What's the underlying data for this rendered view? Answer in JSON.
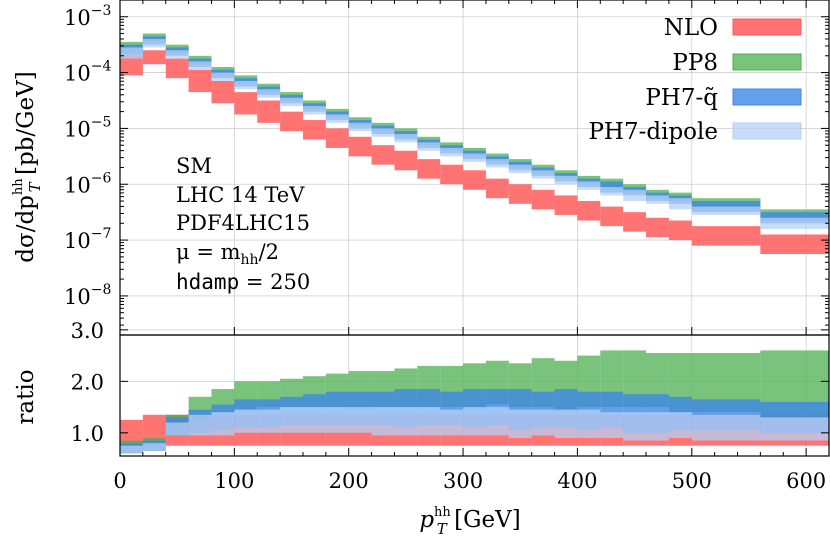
{
  "chart_data": {
    "type": "histogram-ratio",
    "xlabel": {
      "base": "p",
      "sub": "T",
      "sup": "hh",
      "unit": " [GeV]"
    },
    "ylabel_main": {
      "pre": "dσ/dp",
      "sub": "T",
      "sup": "hh",
      "unit": " [pb/GeV]"
    },
    "ylabel_ratio": "ratio",
    "xlim": [
      0,
      620
    ],
    "x_ticks": [
      0,
      100,
      200,
      300,
      400,
      500,
      600
    ],
    "main_ylim_log10": [
      -8.7,
      -2.7
    ],
    "main_y_ticks": [
      {
        "exp": -3,
        "label": "10",
        "sup": "−3"
      },
      {
        "exp": -4,
        "label": "10",
        "sup": "−4"
      },
      {
        "exp": -5,
        "label": "10",
        "sup": "−5"
      },
      {
        "exp": -6,
        "label": "10",
        "sup": "−6"
      },
      {
        "exp": -7,
        "label": "10",
        "sup": "−7"
      },
      {
        "exp": -8,
        "label": "10",
        "sup": "−8"
      }
    ],
    "ratio_ylim": [
      0.55,
      2.9
    ],
    "ratio_y_ticks": [
      {
        "value": 1.0,
        "label": "1.0"
      },
      {
        "value": 2.0,
        "label": "2.0"
      },
      {
        "value": 3.0,
        "label": "3.0"
      }
    ],
    "bin_edges": [
      0,
      20,
      40,
      60,
      80,
      100,
      120,
      140,
      160,
      180,
      200,
      220,
      240,
      260,
      280,
      300,
      320,
      340,
      360,
      380,
      400,
      420,
      440,
      460,
      480,
      500,
      560,
      620
    ],
    "series": [
      {
        "name": "NLO",
        "color": "#ff5a5a",
        "alpha": 0.85,
        "main_log10_lo": [
          -4.05,
          -3.85,
          -4.1,
          -4.35,
          -4.55,
          -4.75,
          -4.9,
          -5.05,
          -5.2,
          -5.35,
          -5.5,
          -5.65,
          -5.75,
          -5.9,
          -6.0,
          -6.1,
          -6.25,
          -6.35,
          -6.45,
          -6.55,
          -6.65,
          -6.75,
          -6.85,
          -6.95,
          -7.0,
          -7.1,
          -7.25
        ],
        "main_log10_hi": [
          -3.7,
          -3.6,
          -3.75,
          -3.95,
          -4.15,
          -4.35,
          -4.5,
          -4.7,
          -4.85,
          -5.0,
          -5.15,
          -5.3,
          -5.4,
          -5.55,
          -5.65,
          -5.75,
          -5.9,
          -6.0,
          -6.1,
          -6.2,
          -6.3,
          -6.4,
          -6.5,
          -6.6,
          -6.65,
          -6.75,
          -6.9
        ],
        "ratio_lo": [
          0.75,
          0.75,
          0.75,
          0.75,
          0.75,
          0.75,
          0.75,
          0.75,
          0.75,
          0.75,
          0.75,
          0.75,
          0.75,
          0.75,
          0.75,
          0.75,
          0.75,
          0.75,
          0.75,
          0.75,
          0.75,
          0.75,
          0.75,
          0.75,
          0.75,
          0.75,
          0.75
        ],
        "ratio_hi": [
          1.25,
          1.35,
          1.35,
          1.35,
          1.35,
          1.35,
          1.35,
          1.35,
          1.35,
          1.35,
          1.35,
          1.35,
          1.35,
          1.35,
          1.35,
          1.35,
          1.35,
          1.35,
          1.35,
          1.35,
          1.35,
          1.35,
          1.35,
          1.35,
          1.35,
          1.35,
          1.35
        ]
      },
      {
        "name": "PP8",
        "color": "#4caf50",
        "alpha": 0.75,
        "main_log10_lo": [
          -3.65,
          -3.45,
          -3.65,
          -3.85,
          -4.05,
          -4.2,
          -4.35,
          -4.5,
          -4.65,
          -4.8,
          -4.95,
          -5.05,
          -5.15,
          -5.3,
          -5.4,
          -5.5,
          -5.6,
          -5.7,
          -5.8,
          -5.9,
          -6.0,
          -6.1,
          -6.15,
          -6.25,
          -6.3,
          -6.45,
          -6.65
        ],
        "main_log10_hi": [
          -3.45,
          -3.3,
          -3.5,
          -3.7,
          -3.9,
          -4.05,
          -4.2,
          -4.35,
          -4.5,
          -4.65,
          -4.8,
          -4.9,
          -5.0,
          -5.15,
          -5.25,
          -5.35,
          -5.45,
          -5.55,
          -5.65,
          -5.75,
          -5.85,
          -5.9,
          -6.0,
          -6.1,
          -6.15,
          -6.25,
          -6.45
        ],
        "ratio_lo": [
          0.6,
          0.65,
          0.95,
          1.2,
          1.4,
          1.45,
          1.5,
          1.5,
          1.5,
          1.5,
          1.45,
          1.5,
          1.5,
          1.5,
          1.5,
          1.45,
          1.55,
          1.5,
          1.5,
          1.45,
          1.5,
          1.5,
          1.5,
          1.5,
          1.4,
          1.4,
          1.3
        ],
        "ratio_hi": [
          0.85,
          0.9,
          1.35,
          1.7,
          1.85,
          2.0,
          2.0,
          2.05,
          2.1,
          2.15,
          2.2,
          2.2,
          2.25,
          2.3,
          2.3,
          2.35,
          2.4,
          2.35,
          2.45,
          2.4,
          2.5,
          2.6,
          2.6,
          2.55,
          2.55,
          2.55,
          2.6
        ]
      },
      {
        "name": "PH7-q̃",
        "color": "#3f87e6",
        "alpha": 0.8,
        "main_log10_lo": [
          -3.7,
          -3.5,
          -3.7,
          -3.9,
          -4.1,
          -4.25,
          -4.4,
          -4.55,
          -4.7,
          -4.85,
          -5.0,
          -5.1,
          -5.2,
          -5.35,
          -5.45,
          -5.55,
          -5.65,
          -5.75,
          -5.85,
          -5.95,
          -6.05,
          -6.15,
          -6.2,
          -6.3,
          -6.35,
          -6.5,
          -6.7
        ],
        "main_log10_hi": [
          -3.5,
          -3.35,
          -3.55,
          -3.75,
          -3.95,
          -4.1,
          -4.25,
          -4.4,
          -4.55,
          -4.7,
          -4.85,
          -4.95,
          -5.05,
          -5.2,
          -5.3,
          -5.4,
          -5.5,
          -5.6,
          -5.7,
          -5.8,
          -5.9,
          -5.95,
          -6.05,
          -6.15,
          -6.2,
          -6.3,
          -6.5
        ],
        "ratio_lo": [
          0.6,
          0.65,
          0.95,
          1.0,
          1.05,
          1.1,
          1.1,
          1.15,
          1.15,
          1.15,
          1.15,
          1.15,
          1.1,
          1.15,
          1.15,
          1.1,
          1.15,
          1.05,
          1.1,
          1.1,
          1.05,
          1.1,
          1.0,
          1.0,
          1.05,
          1.05,
          1.0
        ],
        "ratio_hi": [
          0.8,
          0.85,
          1.3,
          1.45,
          1.55,
          1.65,
          1.65,
          1.7,
          1.75,
          1.8,
          1.8,
          1.8,
          1.85,
          1.85,
          1.8,
          1.85,
          1.85,
          1.85,
          1.8,
          1.85,
          1.8,
          1.8,
          1.75,
          1.75,
          1.7,
          1.65,
          1.6
        ]
      },
      {
        "name": "PH7-dipole",
        "color": "#b5d0f5",
        "alpha": 0.75,
        "main_log10_lo": [
          -3.75,
          -3.55,
          -3.75,
          -3.95,
          -4.15,
          -4.3,
          -4.45,
          -4.6,
          -4.75,
          -4.9,
          -5.05,
          -5.15,
          -5.25,
          -5.4,
          -5.5,
          -5.6,
          -5.7,
          -5.8,
          -5.9,
          -6.0,
          -6.1,
          -6.2,
          -6.3,
          -6.35,
          -6.45,
          -6.55,
          -6.8
        ],
        "main_log10_hi": [
          -3.55,
          -3.4,
          -3.6,
          -3.8,
          -4.0,
          -4.15,
          -4.3,
          -4.45,
          -4.6,
          -4.75,
          -4.9,
          -5.0,
          -5.1,
          -5.25,
          -5.35,
          -5.45,
          -5.55,
          -5.65,
          -5.75,
          -5.85,
          -5.95,
          -6.05,
          -6.1,
          -6.2,
          -6.25,
          -6.4,
          -6.6
        ],
        "ratio_lo": [
          0.6,
          0.65,
          0.95,
          0.95,
          0.95,
          1.0,
          1.0,
          1.0,
          1.0,
          1.0,
          1.0,
          0.95,
          0.95,
          0.95,
          0.95,
          0.95,
          0.95,
          0.9,
          0.95,
          0.9,
          0.9,
          0.9,
          0.85,
          0.85,
          0.9,
          0.85,
          0.85
        ],
        "ratio_hi": [
          0.75,
          0.8,
          1.2,
          1.35,
          1.4,
          1.45,
          1.45,
          1.5,
          1.5,
          1.5,
          1.5,
          1.5,
          1.5,
          1.5,
          1.45,
          1.5,
          1.5,
          1.45,
          1.45,
          1.45,
          1.45,
          1.4,
          1.4,
          1.4,
          1.4,
          1.35,
          1.3
        ]
      }
    ],
    "annotations": [
      {
        "text": "SM"
      },
      {
        "text": "LHC 14 TeV"
      },
      {
        "text": "PDF4LHC15"
      },
      {
        "text": "μ = m",
        "sub": "hh",
        "tail": "/2"
      },
      {
        "text": "hdamp",
        "tail": " = 250"
      }
    ],
    "legend_position": "top-right",
    "grid": true
  }
}
